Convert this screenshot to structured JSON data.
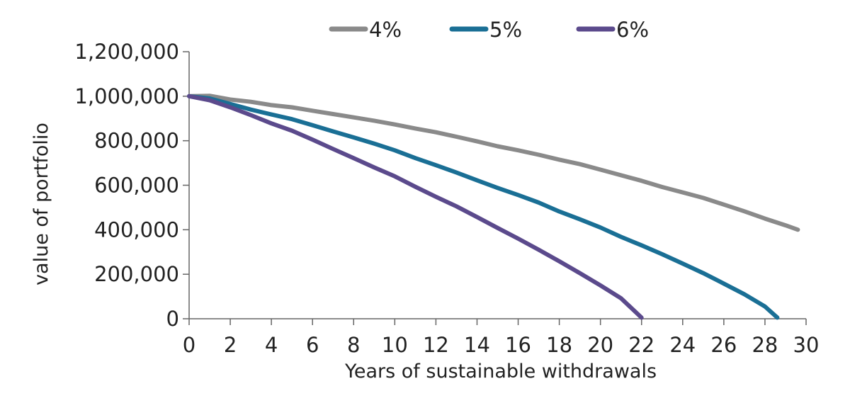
{
  "chart_data": {
    "type": "line",
    "xlabel": "Years of sustainable withdrawals",
    "ylabel": "value of portfolio",
    "xlim": [
      0,
      30
    ],
    "ylim": [
      0,
      1200000
    ],
    "x_ticks": [
      0,
      2,
      4,
      6,
      8,
      10,
      12,
      14,
      16,
      18,
      20,
      22,
      24,
      26,
      28,
      30
    ],
    "y_ticks": [
      0,
      200000,
      400000,
      600000,
      800000,
      1000000,
      1200000
    ],
    "y_tick_labels": [
      "0",
      "200,000",
      "400,000",
      "600,000",
      "800,000",
      "1,000,000",
      "1,200,000"
    ],
    "grid": false,
    "legend_position": "top",
    "series": [
      {
        "name": "4%",
        "color": "#8a8a8a",
        "points": [
          [
            0,
            1000000
          ],
          [
            1,
            1002000
          ],
          [
            2,
            985000
          ],
          [
            3,
            975000
          ],
          [
            4,
            960000
          ],
          [
            5,
            950000
          ],
          [
            6,
            935000
          ],
          [
            7,
            920000
          ],
          [
            8,
            905000
          ],
          [
            9,
            890000
          ],
          [
            10,
            873000
          ],
          [
            11,
            855000
          ],
          [
            12,
            838000
          ],
          [
            13,
            818000
          ],
          [
            14,
            797000
          ],
          [
            15,
            775000
          ],
          [
            16,
            757000
          ],
          [
            17,
            737000
          ],
          [
            18,
            715000
          ],
          [
            19,
            695000
          ],
          [
            20,
            670000
          ],
          [
            21,
            645000
          ],
          [
            22,
            620000
          ],
          [
            23,
            592000
          ],
          [
            24,
            568000
          ],
          [
            25,
            543000
          ],
          [
            26,
            513000
          ],
          [
            27,
            483000
          ],
          [
            28,
            450000
          ],
          [
            29,
            420000
          ],
          [
            29.6,
            400000
          ]
        ]
      },
      {
        "name": "5%",
        "color": "#1a6f95",
        "points": [
          [
            0,
            1000000
          ],
          [
            1,
            990000
          ],
          [
            2,
            965000
          ],
          [
            3,
            940000
          ],
          [
            4,
            918000
          ],
          [
            5,
            897000
          ],
          [
            6,
            870000
          ],
          [
            7,
            842000
          ],
          [
            8,
            815000
          ],
          [
            9,
            787000
          ],
          [
            10,
            757000
          ],
          [
            11,
            722000
          ],
          [
            12,
            690000
          ],
          [
            13,
            657000
          ],
          [
            14,
            622000
          ],
          [
            15,
            588000
          ],
          [
            16,
            556000
          ],
          [
            17,
            522000
          ],
          [
            18,
            482000
          ],
          [
            19,
            447000
          ],
          [
            20,
            410000
          ],
          [
            21,
            368000
          ],
          [
            22,
            330000
          ],
          [
            23,
            290000
          ],
          [
            24,
            248000
          ],
          [
            25,
            205000
          ],
          [
            26,
            158000
          ],
          [
            27,
            110000
          ],
          [
            28,
            55000
          ],
          [
            28.6,
            5000
          ]
        ]
      },
      {
        "name": "6%",
        "color": "#5b4a8c",
        "points": [
          [
            0,
            1000000
          ],
          [
            1,
            982000
          ],
          [
            2,
            950000
          ],
          [
            3,
            915000
          ],
          [
            4,
            878000
          ],
          [
            5,
            845000
          ],
          [
            6,
            805000
          ],
          [
            7,
            763000
          ],
          [
            8,
            722000
          ],
          [
            9,
            680000
          ],
          [
            10,
            640000
          ],
          [
            11,
            593000
          ],
          [
            12,
            548000
          ],
          [
            13,
            505000
          ],
          [
            14,
            457000
          ],
          [
            15,
            408000
          ],
          [
            16,
            360000
          ],
          [
            17,
            310000
          ],
          [
            18,
            258000
          ],
          [
            19,
            205000
          ],
          [
            20,
            150000
          ],
          [
            21,
            92000
          ],
          [
            22,
            5000
          ]
        ]
      }
    ]
  }
}
